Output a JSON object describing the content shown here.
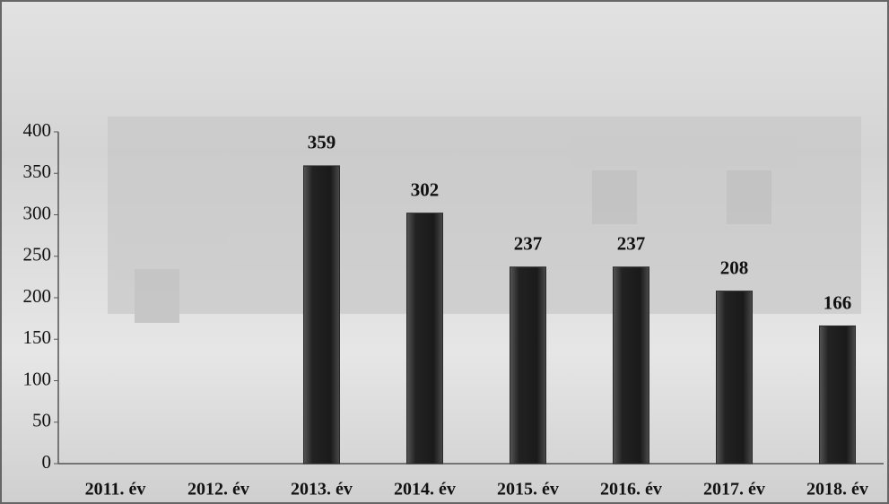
{
  "chart_data": {
    "type": "bar",
    "categories": [
      "2011. év",
      "2012. év",
      "2013. év",
      "2014. év",
      "2015. év",
      "2016. év",
      "2017. év",
      "2018. év"
    ],
    "values": [
      null,
      null,
      359,
      302,
      237,
      237,
      208,
      166
    ],
    "color": "#2a2a2a",
    "ylim": [
      0,
      400
    ],
    "yticks": [
      0,
      50,
      100,
      150,
      200,
      250,
      300,
      350,
      400
    ],
    "grid": false
  }
}
